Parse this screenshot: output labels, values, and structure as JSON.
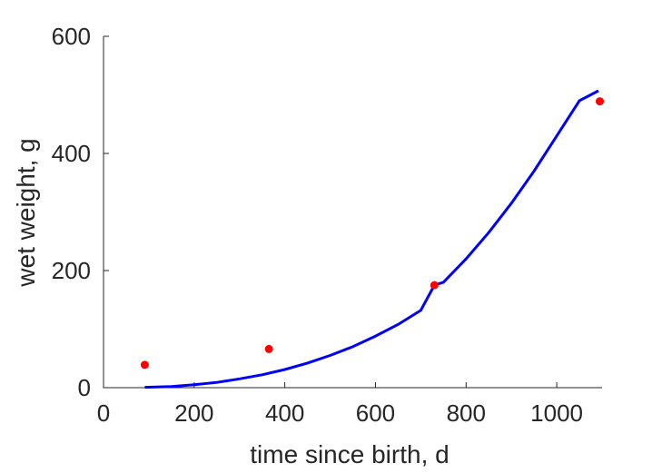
{
  "chart_data": {
    "type": "scatter",
    "title": "",
    "xlabel": "time since birth, d",
    "ylabel": "wet weight, g",
    "xlim": [
      0,
      1100
    ],
    "ylim": [
      0,
      600
    ],
    "xticks": [
      0,
      200,
      400,
      600,
      800,
      1000
    ],
    "yticks": [
      0,
      200,
      400,
      600
    ],
    "grid": false,
    "series": [
      {
        "kind": "points",
        "color": "#ff0000",
        "x": [
          91,
          365,
          730,
          1095
        ],
        "y": [
          39,
          66,
          175,
          489
        ]
      },
      {
        "kind": "line",
        "color": "#0000ff",
        "x": [
          91,
          150,
          200,
          250,
          300,
          350,
          400,
          450,
          500,
          550,
          600,
          650,
          700,
          730,
          750,
          800,
          850,
          900,
          950,
          1000,
          1050,
          1092
        ],
        "y": [
          0.5,
          2,
          5,
          9,
          15,
          22,
          31,
          42,
          55,
          70,
          88,
          108,
          132,
          175,
          180,
          220,
          265,
          315,
          370,
          430,
          490,
          507
        ]
      }
    ]
  }
}
